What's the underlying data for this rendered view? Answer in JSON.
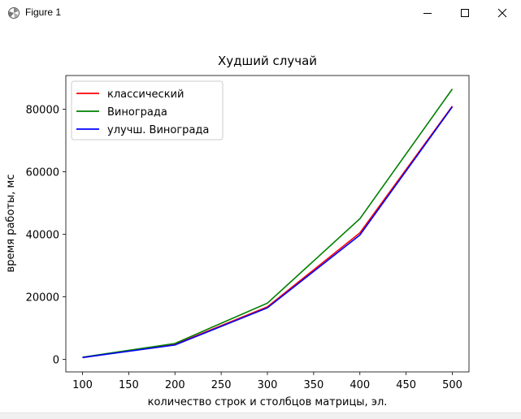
{
  "window": {
    "title": "Figure 1",
    "app_icon": "matplotlib-icon",
    "controls": [
      "minimize-icon",
      "maximize-icon",
      "close-icon"
    ]
  },
  "chart_data": {
    "type": "line",
    "title": "Худший случай",
    "xlabel": "количество строк и столбцов матрицы, эл.",
    "ylabel": "время работы, мс",
    "x": [
      100,
      200,
      300,
      400,
      500
    ],
    "xlim": [
      82,
      518
    ],
    "ylim": [
      -4000,
      90800
    ],
    "xticks": [
      100,
      150,
      200,
      250,
      300,
      350,
      400,
      450,
      500
    ],
    "yticks": [
      0,
      20000,
      40000,
      60000,
      80000
    ],
    "grid": false,
    "legend_position": "top-left",
    "series": [
      {
        "name": "классический",
        "color": "#ff0000",
        "values": [
          600,
          4800,
          16800,
          40500,
          81000
        ]
      },
      {
        "name": "Винограда",
        "color": "#008000",
        "values": [
          700,
          5100,
          18000,
          45000,
          86500
        ]
      },
      {
        "name": "улучш. Винограда",
        "color": "#0000ff",
        "values": [
          600,
          4600,
          16500,
          39800,
          80800
        ]
      }
    ]
  }
}
